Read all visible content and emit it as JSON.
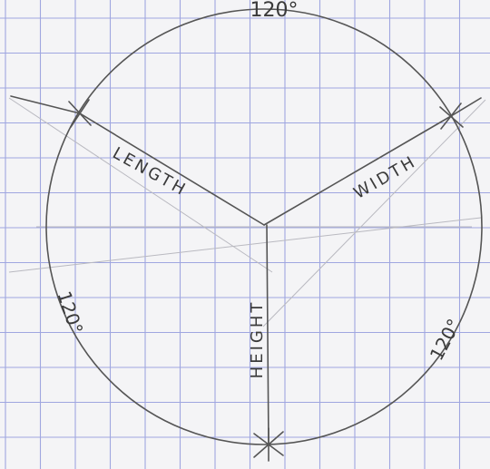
{
  "labels": {
    "top_angle": "120°",
    "length": "LENGTH",
    "width": "WIDTH",
    "height": "HEIGHT",
    "left_angle": "120°",
    "right_angle": "120°"
  }
}
